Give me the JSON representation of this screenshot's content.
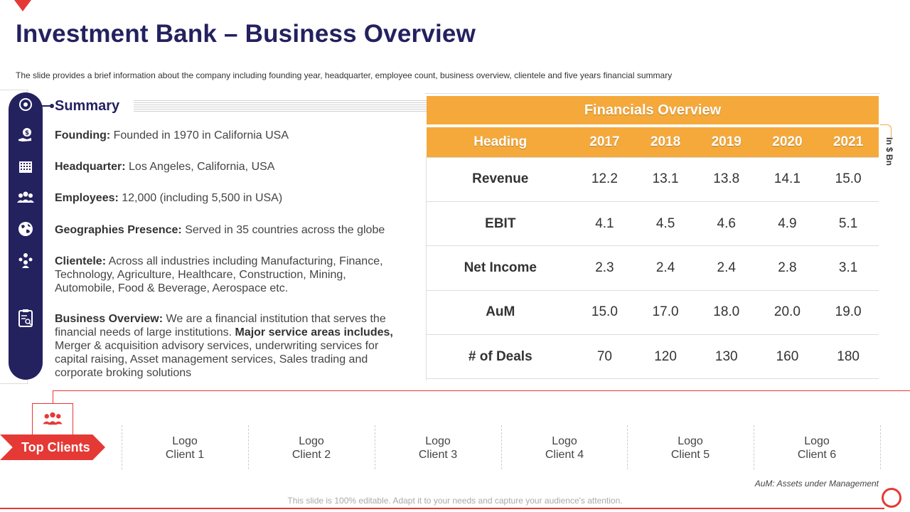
{
  "title": "Investment Bank – Business Overview",
  "subtitle": "The slide provides a brief information about the company including founding year, headquarter, employee count, business overview, clientele and five years financial summary",
  "summary": {
    "heading": "Summary",
    "items": [
      {
        "label": "Founding:",
        "text": " Founded in 1970 in California USA"
      },
      {
        "label": "Headquarter:",
        "text": " Los Angeles, California, USA"
      },
      {
        "label": "Employees:",
        "text": " 12,000 (including 5,500 in USA)"
      },
      {
        "label": "Geographies Presence:",
        "text": " Served in 35 countries across the globe"
      },
      {
        "label": "Clientele:",
        "text": " Across all industries including Manufacturing, Finance, Technology, Agriculture, Healthcare, Construction, Mining, Automobile, Food & Beverage, Aerospace etc."
      }
    ],
    "business_overview": {
      "label": "Business Overview:",
      "text1": " We are a financial institution that serves the financial needs of large institutions. ",
      "bold": "Major service areas includes,",
      "text2": " Merger & acquisition advisory services, underwriting services for capital raising, Asset management services, Sales trading and corporate broking solutions"
    }
  },
  "financials": {
    "title": "Financials Overview",
    "unit": "In $ Bn",
    "columns": [
      "Heading",
      "2017",
      "2018",
      "2019",
      "2020",
      "2021"
    ],
    "rows": [
      [
        "Revenue",
        "12.2",
        "13.1",
        "13.8",
        "14.1",
        "15.0"
      ],
      [
        "EBIT",
        "4.1",
        "4.5",
        "4.6",
        "4.9",
        "5.1"
      ],
      [
        "Net Income",
        "2.3",
        "2.4",
        "2.4",
        "2.8",
        "3.1"
      ],
      [
        "AuM",
        "15.0",
        "17.0",
        "18.0",
        "20.0",
        "19.0"
      ],
      [
        "# of Deals",
        "70",
        "120",
        "130",
        "160",
        "180"
      ]
    ]
  },
  "clients": {
    "label": "Top Clients",
    "items": [
      {
        "line1": "Logo",
        "line2": "Client 1"
      },
      {
        "line1": "Logo",
        "line2": "Client 2"
      },
      {
        "line1": "Logo",
        "line2": "Client 3"
      },
      {
        "line1": "Logo",
        "line2": "Client 4"
      },
      {
        "line1": "Logo",
        "line2": "Client 5"
      },
      {
        "line1": "Logo",
        "line2": "Client 6"
      }
    ]
  },
  "aum_note": "AuM: Assets under Management",
  "footer": "This slide is 100% editable. Adapt it to your needs and capture your audience's attention.",
  "colors": {
    "navy": "#24215f",
    "orange": "#f5a93b",
    "red": "#e53935"
  },
  "icons": [
    "target-icon",
    "dollar-hand-icon",
    "building-icon",
    "people-icon",
    "globe-icon",
    "team-icon",
    "clipboard-icon"
  ]
}
